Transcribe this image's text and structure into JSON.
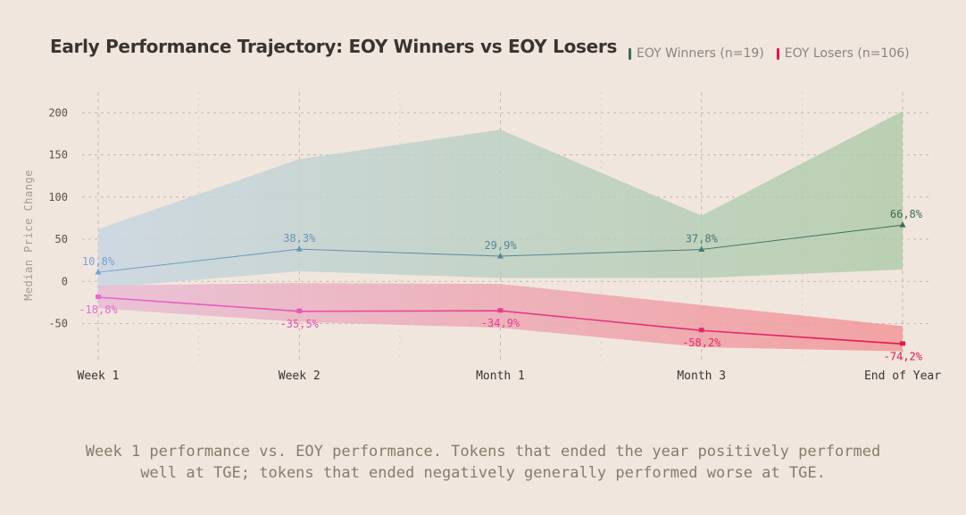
{
  "title": "Early Performance Trajectory: EOY Winners vs EOY Losers",
  "legend": {
    "winners_label": "EOY Winners (n=19)",
    "losers_label": "EOY Losers (n=106)",
    "winners_color": "#3d6b58",
    "losers_color": "#e0174e"
  },
  "caption": {
    "line1": "Week 1 performance vs. EOY performance. Tokens that ended the year positively performed",
    "line2": "well at TGE; tokens that ended negatively generally performed worse at TGE."
  },
  "chart_data": {
    "type": "line",
    "categories": [
      "Week 1",
      "Week 2",
      "Month 1",
      "Month 3",
      "End of Year"
    ],
    "ylabel": "Median Price Change",
    "xlabel": "",
    "ylim": [
      -95,
      230
    ],
    "yticks": [
      200,
      150,
      100,
      50,
      0,
      -50
    ],
    "grid": true,
    "series": [
      {
        "name": "EOY Winners (n=19)",
        "values": [
          10.8,
          38.3,
          29.9,
          37.8,
          66.8
        ],
        "labels": [
          "10,8%",
          "38,3%",
          "29,9%",
          "37,8%",
          "66,8%"
        ],
        "band_upper": [
          62,
          145,
          180,
          78,
          202
        ],
        "band_lower": [
          -8,
          12,
          4,
          4,
          14
        ],
        "color_start": "#7a9fd0",
        "color_end": "#3d6b58"
      },
      {
        "name": "EOY Losers (n=106)",
        "values": [
          -18.8,
          -35.5,
          -34.9,
          -58.2,
          -74.2
        ],
        "labels": [
          "-18,8%",
          "-35,5%",
          "-34,9%",
          "-58,2%",
          "-74,2%"
        ],
        "band_upper": [
          -5,
          -2,
          -3,
          -28,
          -53
        ],
        "band_lower": [
          -32,
          -48,
          -55,
          -78,
          -83
        ],
        "color_start": "#e86ad0",
        "color_end": "#e0174e"
      }
    ]
  }
}
